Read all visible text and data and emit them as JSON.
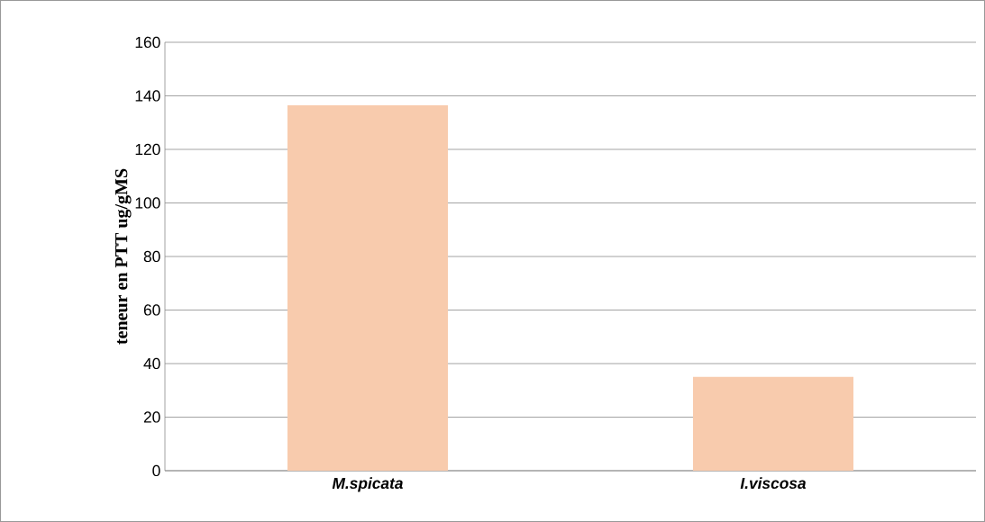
{
  "chart_data": {
    "type": "bar",
    "ylabel": "teneur en PTT ug/gMS",
    "categories": [
      "M.spicata",
      "I.viscosa"
    ],
    "values": [
      136.5,
      35
    ],
    "color": "#f8cbad",
    "ylim": [
      0,
      160
    ],
    "yticks": [
      0,
      20,
      40,
      60,
      80,
      100,
      120,
      140,
      160
    ],
    "grid": "y"
  }
}
